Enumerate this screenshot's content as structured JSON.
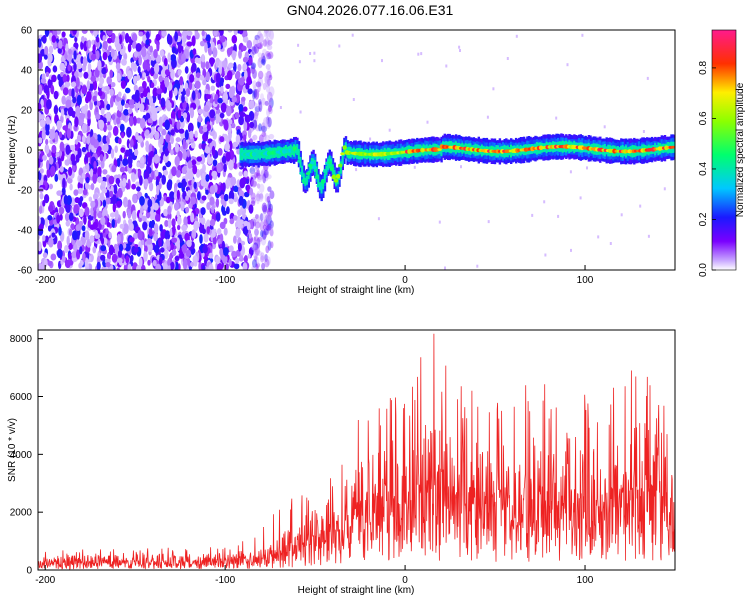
{
  "figure": {
    "title": "GN04.2026.077.16.06.E31"
  },
  "chart_data": [
    {
      "type": "heatmap",
      "title": "GN04.2026.077.16.06.E31",
      "xlabel": "Height of straight line (km)",
      "ylabel": "Frequency (Hz)",
      "xlim": [
        -204,
        150
      ],
      "ylim": [
        -60,
        60
      ],
      "x_ticks": [
        -200,
        -100,
        0,
        100
      ],
      "y_ticks": [
        -60,
        -40,
        -20,
        0,
        20,
        40,
        60
      ],
      "colorbar": {
        "label": "Normalized spectral amplitude",
        "range": [
          0,
          0.95
        ],
        "ticks": [
          0.0,
          0.2,
          0.4,
          0.6,
          0.8
        ],
        "colormap": "rainbow (white → violet → blue → cyan → green → yellow → red → magenta)"
      },
      "features": [
        {
          "region": "x from -204 to -75 km",
          "description": "broadband noise, amplitude ≈ 0.05–0.2 across all frequencies"
        },
        {
          "region": "x from -92 to 150 km",
          "description": "narrow signal band centered near 0 Hz (±3–5 Hz), amplitude rising from ≈0.3 to ≈0.95"
        },
        {
          "region": "x from -60 to -35 km",
          "description": "signal band dips to about -15 Hz"
        }
      ],
      "grid": false
    },
    {
      "type": "line",
      "xlabel": "Height of straight line (km)",
      "ylabel": "SNR (10 * v/v)",
      "xlim": [
        -204,
        150
      ],
      "ylim": [
        0,
        8300
      ],
      "x_ticks": [
        -200,
        -100,
        0,
        100
      ],
      "y_ticks": [
        0,
        2000,
        4000,
        6000,
        8000
      ],
      "series": [
        {
          "color": "#ee2222",
          "envelope": {
            "x": [
              -204,
              -150,
              -100,
              -80,
              -70,
              -60,
              -50,
              -40,
              -30,
              -20,
              -10,
              0,
              10,
              20,
              30,
              50,
              70,
              90,
              110,
              130,
              140,
              150
            ],
            "mean": [
              300,
              320,
              350,
              450,
              700,
              1000,
              1300,
              1500,
              2000,
              2500,
              2800,
              2600,
              3000,
              3200,
              2800,
              2600,
              2700,
              2800,
              2500,
              3000,
              3500,
              2000
            ],
            "peak": [
              700,
              750,
              800,
              1500,
              2200,
              2600,
              3200,
              3600,
              5300,
              6000,
              6200,
              5800,
              8300,
              8100,
              6500,
              6300,
              6700,
              6100,
              6300,
              7300,
              6800,
              4300
            ]
          }
        }
      ],
      "grid": false
    }
  ],
  "colors": {
    "signal_line": "#ee2222",
    "axes": "#000000"
  }
}
